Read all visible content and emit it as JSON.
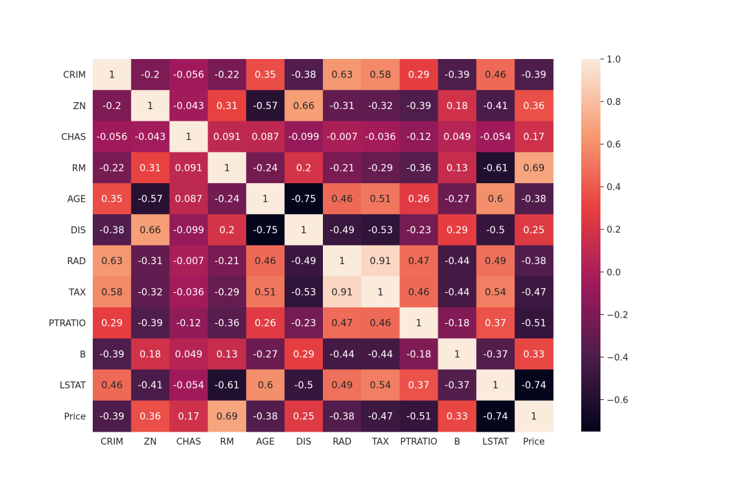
{
  "chart_data": {
    "type": "heatmap",
    "title": "",
    "xlabel": "",
    "ylabel": "",
    "labels": [
      "CRIM",
      "ZN",
      "CHAS",
      "RM",
      "AGE",
      "DIS",
      "RAD",
      "TAX",
      "PTRATIO",
      "B",
      "LSTAT",
      "Price"
    ],
    "values": [
      [
        1,
        -0.2,
        -0.056,
        -0.22,
        0.35,
        -0.38,
        0.63,
        0.58,
        0.29,
        -0.39,
        0.46,
        -0.39
      ],
      [
        -0.2,
        1,
        -0.043,
        0.31,
        -0.57,
        0.66,
        -0.31,
        -0.32,
        -0.39,
        0.18,
        -0.41,
        0.36
      ],
      [
        -0.056,
        -0.043,
        1,
        0.091,
        0.087,
        -0.099,
        -0.007,
        -0.036,
        -0.12,
        0.049,
        -0.054,
        0.17
      ],
      [
        -0.22,
        0.31,
        0.091,
        1,
        -0.24,
        0.2,
        -0.21,
        -0.29,
        -0.36,
        0.13,
        -0.61,
        0.69
      ],
      [
        0.35,
        -0.57,
        0.087,
        -0.24,
        1,
        -0.75,
        0.46,
        0.51,
        0.26,
        -0.27,
        0.6,
        -0.38
      ],
      [
        -0.38,
        0.66,
        -0.099,
        0.2,
        -0.75,
        1,
        -0.49,
        -0.53,
        -0.23,
        0.29,
        -0.5,
        0.25
      ],
      [
        0.63,
        -0.31,
        -0.007,
        -0.21,
        0.46,
        -0.49,
        1,
        0.91,
        0.47,
        -0.44,
        0.49,
        -0.38
      ],
      [
        0.58,
        -0.32,
        -0.036,
        -0.29,
        0.51,
        -0.53,
        0.91,
        1,
        0.46,
        -0.44,
        0.54,
        -0.47
      ],
      [
        0.29,
        -0.39,
        -0.12,
        -0.36,
        0.26,
        -0.23,
        0.47,
        0.46,
        1,
        -0.18,
        0.37,
        -0.51
      ],
      [
        -0.39,
        0.18,
        0.049,
        0.13,
        -0.27,
        0.29,
        -0.44,
        -0.44,
        -0.18,
        1,
        -0.37,
        0.33
      ],
      [
        0.46,
        -0.41,
        -0.054,
        -0.61,
        0.6,
        -0.5,
        0.49,
        0.54,
        0.37,
        -0.37,
        1,
        -0.74
      ],
      [
        -0.39,
        0.36,
        0.17,
        0.69,
        -0.38,
        0.25,
        -0.38,
        -0.47,
        -0.51,
        0.33,
        -0.74,
        1
      ]
    ],
    "colorbar": {
      "vmin": -0.75,
      "vmax": 1.0,
      "ticks": [
        1.0,
        0.8,
        0.6,
        0.4,
        0.2,
        0.0,
        -0.2,
        -0.4,
        -0.6
      ],
      "tick_labels": [
        "1.0",
        "0.8",
        "0.6",
        "0.4",
        "0.2",
        "0.0",
        "−0.2",
        "−0.4",
        "−0.6"
      ]
    },
    "colormap": "rocket",
    "colormap_stops": [
      "#03051a",
      "#4c1d4b",
      "#a11a5b",
      "#e83f3f",
      "#f69c73",
      "#faebdd"
    ]
  }
}
